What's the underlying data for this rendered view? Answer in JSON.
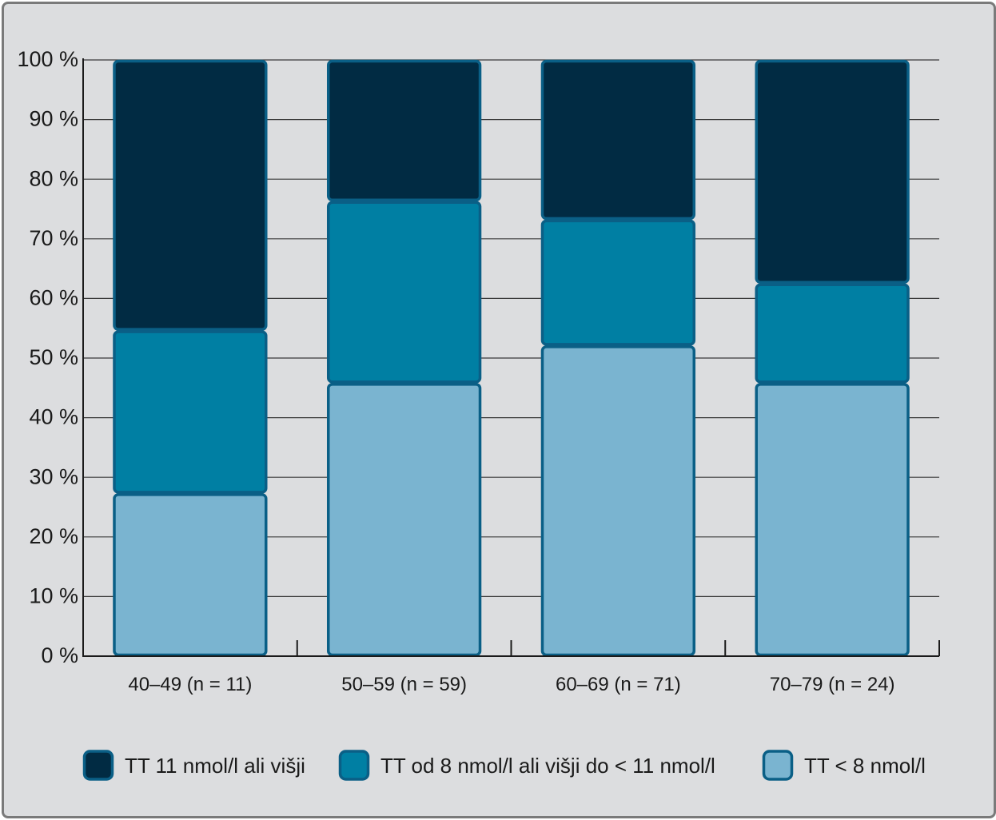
{
  "chart_data": {
    "type": "bar",
    "stacked": true,
    "normalized": true,
    "categories": [
      "40–49 (n = 11)",
      "50–59 (n = 59)",
      "60–69 (n = 71)",
      "70–79 (n = 24)"
    ],
    "series": [
      {
        "name": "TT < 8 nmol/l",
        "values": [
          27.3,
          45.8,
          52.1,
          45.8
        ],
        "color": "#7ab4d0"
      },
      {
        "name": "TT od 8 nmol/l ali višji do < 11 nmol/l",
        "values": [
          27.3,
          30.5,
          21.1,
          16.7
        ],
        "color": "#007fa3"
      },
      {
        "name": "TT 11 nmol/l ali višji",
        "values": [
          45.4,
          23.7,
          26.8,
          37.5
        ],
        "color": "#012b43"
      }
    ],
    "legend_order": [
      2,
      1,
      0
    ],
    "y_ticks": [
      "0 %",
      "10 %",
      "20 %",
      "30 %",
      "40 %",
      "50 %",
      "60 %",
      "70 %",
      "80 %",
      "90 %",
      "100 %"
    ],
    "ylim": [
      0,
      100
    ],
    "grid": true,
    "legend_position": "bottom",
    "bar_outline_color": "#0a5f86",
    "title": "",
    "xlabel": "",
    "ylabel": ""
  }
}
